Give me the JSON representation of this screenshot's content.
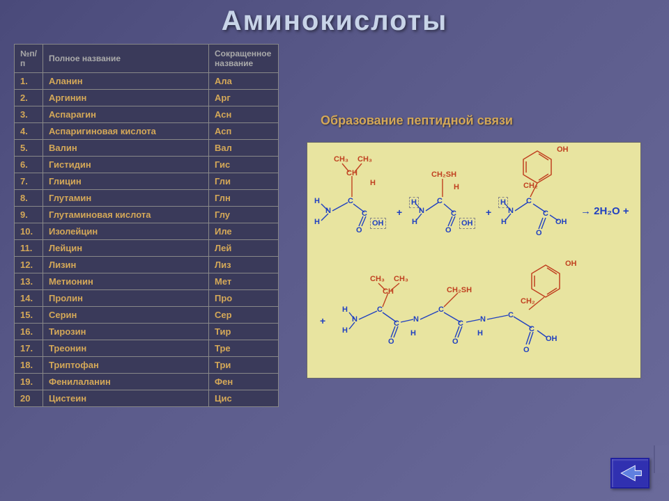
{
  "title": "Аминокислоты",
  "table": {
    "columns": [
      "№п/п",
      "Полное название",
      "Сокращенное название"
    ],
    "rows": [
      [
        "1.",
        "Аланин",
        "Ала"
      ],
      [
        "2.",
        "Аргинин",
        "Арг"
      ],
      [
        "3.",
        "Аспарагин",
        "Асн"
      ],
      [
        "4.",
        "Аспаригиновая кислота",
        "Асп"
      ],
      [
        "5.",
        "Валин",
        "Вал"
      ],
      [
        "6.",
        "Гистидин",
        "Гис"
      ],
      [
        "7.",
        "Глицин",
        "Гли"
      ],
      [
        "8.",
        "Глутамин",
        "Глн"
      ],
      [
        "9.",
        "Глутаминовая кислота",
        "Глу"
      ],
      [
        "10.",
        "Изолейцин",
        "Иле"
      ],
      [
        "11.",
        "Лейцин",
        "Лей"
      ],
      [
        "12.",
        "Лизин",
        "Лиз"
      ],
      [
        "13.",
        "Метионин",
        "Мет"
      ],
      [
        "14.",
        "Пролин",
        "Про"
      ],
      [
        "15.",
        "Серин",
        "Сер"
      ],
      [
        "16.",
        "Тирозин",
        "Тир"
      ],
      [
        "17.",
        "Треонин",
        "Тре"
      ],
      [
        "18.",
        "Триптофан",
        "Три"
      ],
      [
        "19.",
        "Фенилаланин",
        "Фен"
      ],
      [
        "20",
        "Цистеин",
        "Цис"
      ]
    ]
  },
  "diagram": {
    "title": "Образование пептидной связи",
    "labels": {
      "ch3a": "CH₃",
      "ch3b": "CH₃",
      "ch": "CH",
      "h": "H",
      "ch2sh": "CH₂SH",
      "oh": "OH",
      "n": "N",
      "c": "C",
      "o": "O",
      "plus": "+",
      "arrow": "→ 2H₂O +"
    },
    "colors": {
      "bond_blue": "#2040c0",
      "group_red": "#c04020",
      "bg": "#e8e4a0"
    }
  },
  "nav": {
    "back": "back"
  },
  "style": {
    "title_color": "#c8d4e8",
    "cell_text_color": "#d4a858",
    "header_text_color": "#aaaaaa",
    "bg_gradient_from": "#4a4a7a",
    "bg_gradient_to": "#6a6a9a",
    "table_bg": "#3a3a5a",
    "border_color": "#888888",
    "nav_bg": "#3030b0"
  }
}
